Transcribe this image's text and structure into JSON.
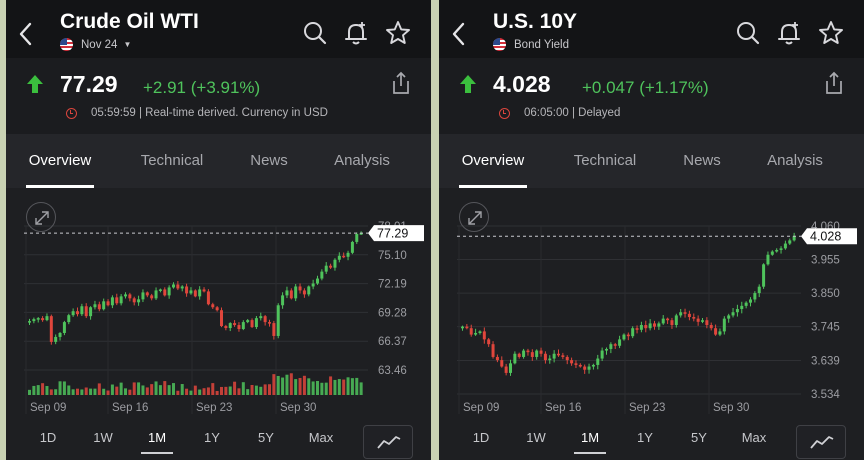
{
  "panels": [
    {
      "title": "Crude Oil WTI",
      "subtitle": "Nov 24",
      "has_dropdown": true,
      "price": "77.29",
      "change": "+2.91 (+3.91%)",
      "status": "05:59:59 | Real-time derived. Currency in USD",
      "tabs": [
        "Overview",
        "Technical",
        "News",
        "Analysis"
      ],
      "active_tab": "Overview",
      "ranges": [
        "1D",
        "1W",
        "1M",
        "1Y",
        "5Y",
        "Max"
      ],
      "active_range": "1M",
      "colors": {
        "up": "#4fc35c",
        "down": "#e0463c",
        "last_price_tag": "#ffffff"
      },
      "chart_data": {
        "type": "candlestick",
        "y_ticks": [
          "78.01",
          "75.10",
          "72.19",
          "69.28",
          "66.37",
          "63.46"
        ],
        "ylim": [
          63.46,
          78.01
        ],
        "x_ticks": [
          "Sep 09",
          "Sep 16",
          "Sep 23",
          "Sep 30"
        ],
        "last_price_label": "77.29",
        "last_price": 77.29,
        "has_volume": true,
        "close_series": [
          68.4,
          68.6,
          68.7,
          68.5,
          68.9,
          66.3,
          66.8,
          67.2,
          68.3,
          69.0,
          69.4,
          69.1,
          69.9,
          68.9,
          69.8,
          70.1,
          69.6,
          70.4,
          70.0,
          70.8,
          70.2,
          70.9,
          71.1,
          70.7,
          70.3,
          70.6,
          71.3,
          71.0,
          70.7,
          71.5,
          71.6,
          71.0,
          71.8,
          72.1,
          71.7,
          71.9,
          71.2,
          71.5,
          70.9,
          71.6,
          71.4,
          70.1,
          69.8,
          69.5,
          67.9,
          67.7,
          68.2,
          68.0,
          67.6,
          68.3,
          68.5,
          67.8,
          68.7,
          68.9,
          68.3,
          68.2,
          66.9,
          70.0,
          71.0,
          71.5,
          70.7,
          71.9,
          71.5,
          71.1,
          71.9,
          72.2,
          72.7,
          73.4,
          74.0,
          73.8,
          74.6,
          75.0,
          74.9,
          75.3,
          76.4,
          77.2,
          77.29
        ]
      }
    },
    {
      "title": "U.S. 10Y",
      "subtitle": "Bond Yield",
      "has_dropdown": false,
      "price": "4.028",
      "change": "+0.047 (+1.17%)",
      "status": "06:05:00 | Delayed",
      "tabs": [
        "Overview",
        "Technical",
        "News",
        "Analysis"
      ],
      "active_tab": "Overview",
      "ranges": [
        "1D",
        "1W",
        "1M",
        "1Y",
        "5Y",
        "Max"
      ],
      "active_range": "1M",
      "colors": {
        "up": "#4fc35c",
        "down": "#e0463c",
        "last_price_tag": "#ffffff"
      },
      "chart_data": {
        "type": "candlestick",
        "y_ticks": [
          "4.060",
          "3.955",
          "3.850",
          "3.745",
          "3.639",
          "3.534"
        ],
        "ylim": [
          3.534,
          4.06
        ],
        "x_ticks": [
          "Sep 09",
          "Sep 16",
          "Sep 23",
          "Sep 30"
        ],
        "last_price_label": "4.028",
        "last_price": 4.028,
        "has_volume": false,
        "close_series": [
          3.745,
          3.74,
          3.72,
          3.725,
          3.73,
          3.705,
          3.69,
          3.65,
          3.64,
          3.62,
          3.6,
          3.63,
          3.66,
          3.65,
          3.67,
          3.665,
          3.65,
          3.67,
          3.66,
          3.64,
          3.645,
          3.66,
          3.655,
          3.65,
          3.64,
          3.63,
          3.625,
          3.62,
          3.61,
          3.62,
          3.625,
          3.645,
          3.67,
          3.675,
          3.69,
          3.685,
          3.705,
          3.72,
          3.715,
          3.74,
          3.735,
          3.75,
          3.74,
          3.755,
          3.745,
          3.755,
          3.77,
          3.765,
          3.75,
          3.78,
          3.79,
          3.785,
          3.775,
          3.77,
          3.76,
          3.765,
          3.75,
          3.74,
          3.72,
          3.73,
          3.77,
          3.78,
          3.79,
          3.8,
          3.81,
          3.82,
          3.83,
          3.85,
          3.87,
          3.94,
          3.97,
          3.98,
          3.985,
          3.99,
          4.005,
          4.015,
          4.028
        ]
      }
    }
  ]
}
